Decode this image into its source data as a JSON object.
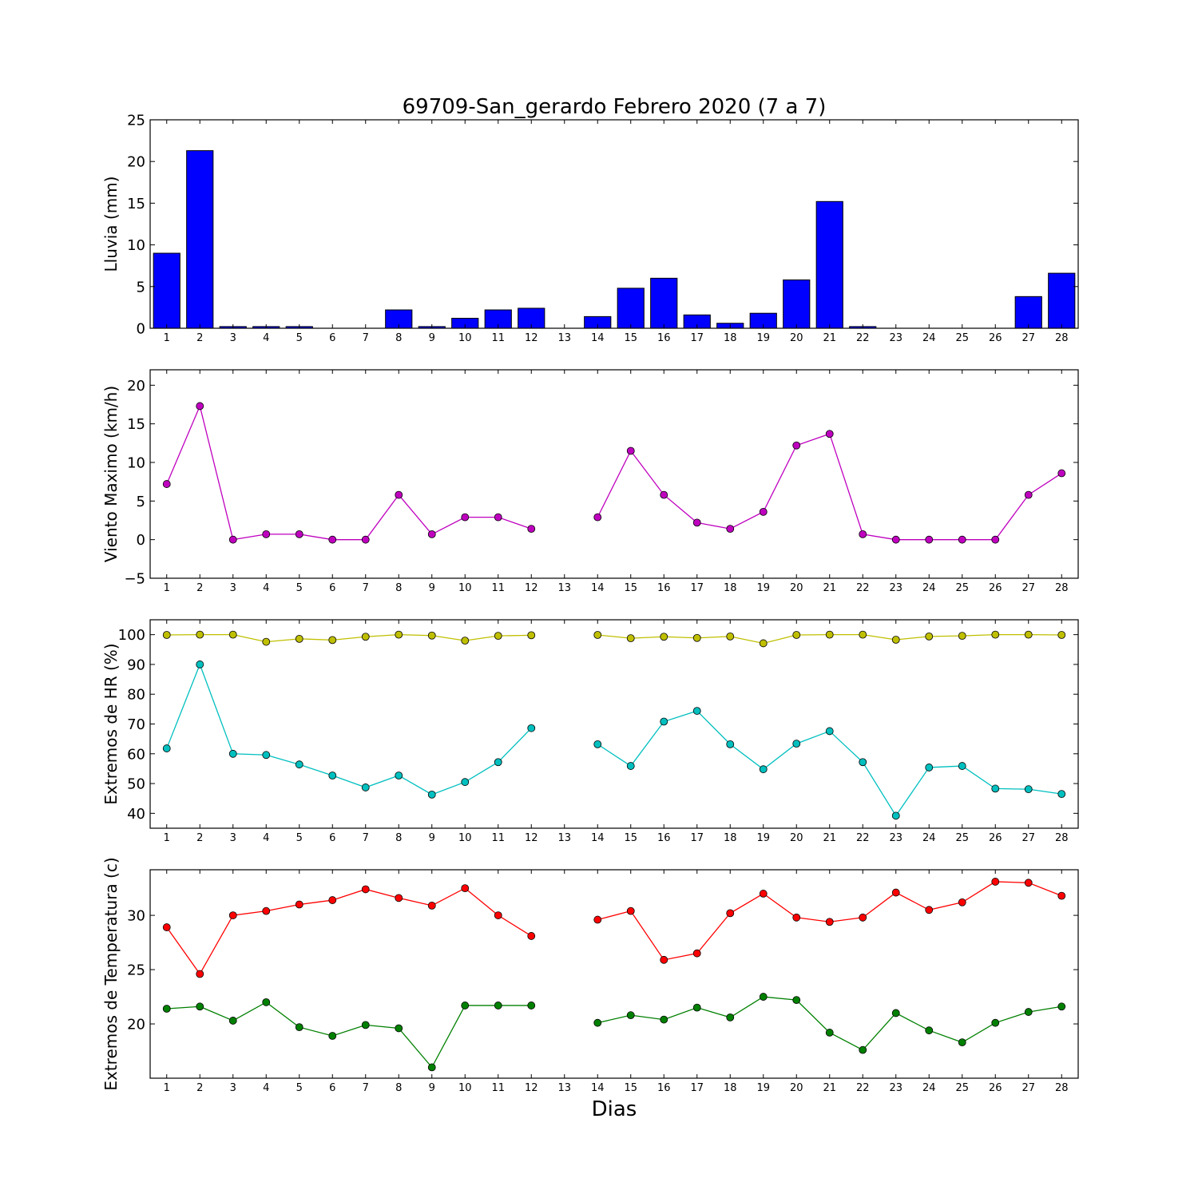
{
  "chart_data": {
    "title": "69709-San_gerardo Febrero 2020  (7 a 7)",
    "xlabel": "Dias",
    "x_tick_labels": [
      "1",
      "2",
      "3",
      "4",
      "5",
      "6",
      "7",
      "8",
      "9",
      "10",
      "11",
      "12",
      "13",
      "14",
      "15",
      "16",
      "17",
      "18",
      "19",
      "20",
      "21",
      "22",
      "23",
      "24",
      "25",
      "26",
      "27",
      "28"
    ],
    "panels": [
      {
        "type": "bar",
        "ylabel": "Lluvia (mm)",
        "ylim": [
          0,
          25
        ],
        "yticks": [
          0,
          5,
          10,
          15,
          20,
          25
        ],
        "ytick_labels": [
          "0",
          "5",
          "10",
          "15",
          "20",
          "25"
        ],
        "series": [
          {
            "color": "#0000ff",
            "values": [
              9.0,
              21.3,
              0.2,
              0.2,
              0.2,
              0.0,
              0.0,
              2.2,
              0.2,
              1.2,
              2.2,
              2.4,
              0.0,
              1.4,
              4.8,
              6.0,
              1.6,
              0.6,
              1.8,
              5.8,
              15.2,
              0.2,
              0.0,
              0.0,
              0.0,
              0.0,
              3.8,
              6.6
            ]
          }
        ]
      },
      {
        "type": "line",
        "ylabel": "Viento Maximo (km/h)",
        "ylim": [
          -5,
          22
        ],
        "yticks": [
          -5,
          0,
          5,
          10,
          15,
          20
        ],
        "ytick_labels": [
          "−5",
          "0",
          "5",
          "10",
          "15",
          "20"
        ],
        "series": [
          {
            "color": "#bf00bf",
            "values": [
              7.2,
              17.3,
              0.0,
              0.7,
              0.7,
              0.0,
              0.0,
              5.8,
              0.7,
              2.9,
              2.9,
              1.4,
              null,
              2.9,
              11.5,
              5.8,
              2.2,
              1.4,
              3.6,
              12.2,
              13.7,
              0.7,
              0.0,
              0.0,
              0.0,
              0.0,
              5.8,
              8.6
            ]
          }
        ]
      },
      {
        "type": "line",
        "ylabel": "Extremos de HR (%)",
        "ylim": [
          35,
          105
        ],
        "yticks": [
          40,
          50,
          60,
          70,
          80,
          90,
          100
        ],
        "ytick_labels": [
          "40",
          "50",
          "60",
          "70",
          "80",
          "90",
          "100"
        ],
        "series": [
          {
            "color": "#bfbf00",
            "values": [
              99.9,
              100.0,
              100.0,
              97.6,
              98.6,
              98.2,
              99.3,
              100.0,
              99.7,
              98.0,
              99.6,
              99.8,
              null,
              99.9,
              98.8,
              99.3,
              98.9,
              99.4,
              97.1,
              99.9,
              100.0,
              100.0,
              98.3,
              99.4,
              99.6,
              100.0,
              100.0,
              99.9
            ]
          },
          {
            "color": "#00bfbf",
            "values": [
              61.8,
              90.0,
              60.0,
              59.6,
              56.4,
              52.7,
              48.7,
              52.7,
              46.3,
              50.5,
              57.2,
              68.6,
              null,
              63.2,
              55.9,
              70.8,
              74.4,
              63.2,
              54.8,
              63.4,
              67.6,
              57.2,
              39.2,
              55.4,
              55.9,
              48.3,
              48.1,
              46.5
            ]
          }
        ]
      },
      {
        "type": "line",
        "ylabel": "Extremos de Temperatura (c)",
        "ylim": [
          15,
          34.2
        ],
        "yticks": [
          20,
          25,
          30
        ],
        "ytick_labels": [
          "20",
          "25",
          "30"
        ],
        "series": [
          {
            "color": "#ff0000",
            "values": [
              28.9,
              24.6,
              30.0,
              30.4,
              31.0,
              31.4,
              32.4,
              31.6,
              30.9,
              32.5,
              30.0,
              28.1,
              null,
              29.6,
              30.4,
              25.9,
              26.5,
              30.2,
              32.0,
              29.8,
              29.4,
              29.8,
              32.1,
              30.5,
              31.2,
              33.1,
              33.0,
              31.8
            ]
          },
          {
            "color": "#008000",
            "values": [
              21.4,
              21.6,
              20.3,
              22.0,
              19.7,
              18.9,
              19.9,
              19.6,
              16.0,
              21.7,
              21.7,
              21.7,
              null,
              20.1,
              20.8,
              20.4,
              21.5,
              20.6,
              22.5,
              22.2,
              19.2,
              17.6,
              21.0,
              19.4,
              18.3,
              20.1,
              21.1,
              21.6
            ]
          }
        ]
      }
    ]
  }
}
